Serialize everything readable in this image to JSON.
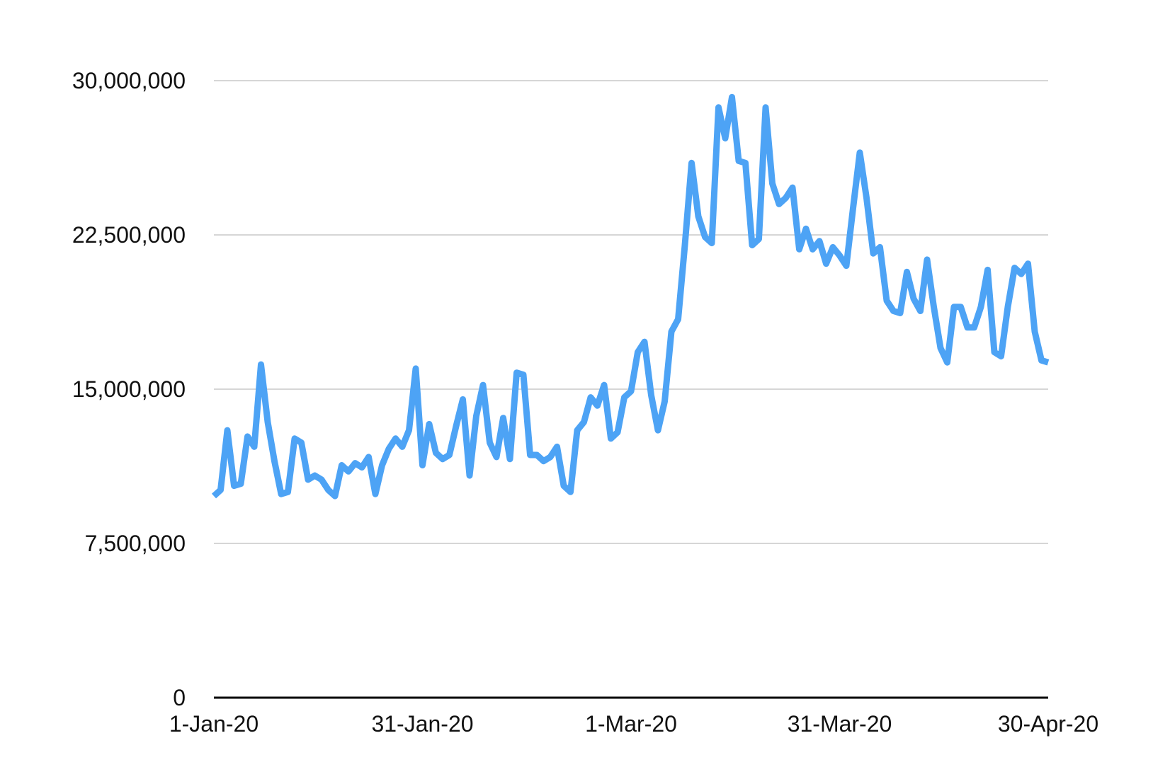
{
  "chart_data": {
    "type": "line",
    "title": "",
    "xlabel": "",
    "ylabel": "",
    "x_start": "1-Jan-20",
    "x_end": "30-Apr-20",
    "ylim": [
      0,
      30000000
    ],
    "y_ticks": [
      {
        "value": 0,
        "label": "0"
      },
      {
        "value": 7500000,
        "label": "7,500,000"
      },
      {
        "value": 15000000,
        "label": "15,000,000"
      },
      {
        "value": 22500000,
        "label": "22,500,000"
      },
      {
        "value": 30000000,
        "label": "30,000,000"
      }
    ],
    "x_ticks": [
      {
        "value": "1-Jan-20",
        "label": "1-Jan-20"
      },
      {
        "value": "31-Jan-20",
        "label": "31-Jan-20"
      },
      {
        "value": "1-Mar-20",
        "label": "1-Mar-20"
      },
      {
        "value": "31-Mar-20",
        "label": "31-Mar-20"
      },
      {
        "value": "30-Apr-20",
        "label": "30-Apr-20"
      }
    ],
    "grid": true,
    "legend": "none",
    "colors": {
      "series": "#4da3f5",
      "grid": "#c8c8c8",
      "axis": "#000000"
    },
    "series": [
      {
        "values": [
          9800000,
          10100000,
          13000000,
          10300000,
          10400000,
          12700000,
          12200000,
          16200000,
          13400000,
          11500000,
          9900000,
          10000000,
          12600000,
          12400000,
          10600000,
          10800000,
          10600000,
          10100000,
          9800000,
          11300000,
          11000000,
          11400000,
          11200000,
          11700000,
          9900000,
          11300000,
          12100000,
          12600000,
          12200000,
          13000000,
          16000000,
          11300000,
          13300000,
          11900000,
          11600000,
          11800000,
          13200000,
          14500000,
          10800000,
          13700000,
          15200000,
          12400000,
          11700000,
          13600000,
          11600000,
          15800000,
          15700000,
          11800000,
          11800000,
          11500000,
          11700000,
          12200000,
          10300000,
          10000000,
          13000000,
          13400000,
          14600000,
          14200000,
          15200000,
          12600000,
          12900000,
          14600000,
          14900000,
          16800000,
          17300000,
          14700000,
          13000000,
          14400000,
          17800000,
          18400000,
          22000000,
          26000000,
          23400000,
          22400000,
          22100000,
          28700000,
          27200000,
          29200000,
          26100000,
          26000000,
          22000000,
          22300000,
          28700000,
          25000000,
          24000000,
          24300000,
          24800000,
          21800000,
          22800000,
          21800000,
          22200000,
          21100000,
          21900000,
          21500000,
          21000000,
          23800000,
          26500000,
          24300000,
          21600000,
          21900000,
          19300000,
          18800000,
          18700000,
          20700000,
          19400000,
          18800000,
          21300000,
          19000000,
          17000000,
          16300000,
          19000000,
          19000000,
          18000000,
          18000000,
          19000000,
          20800000,
          16800000,
          16600000,
          19000000,
          20900000,
          20600000,
          21100000,
          17800000,
          16400000,
          16300000
        ]
      }
    ]
  }
}
